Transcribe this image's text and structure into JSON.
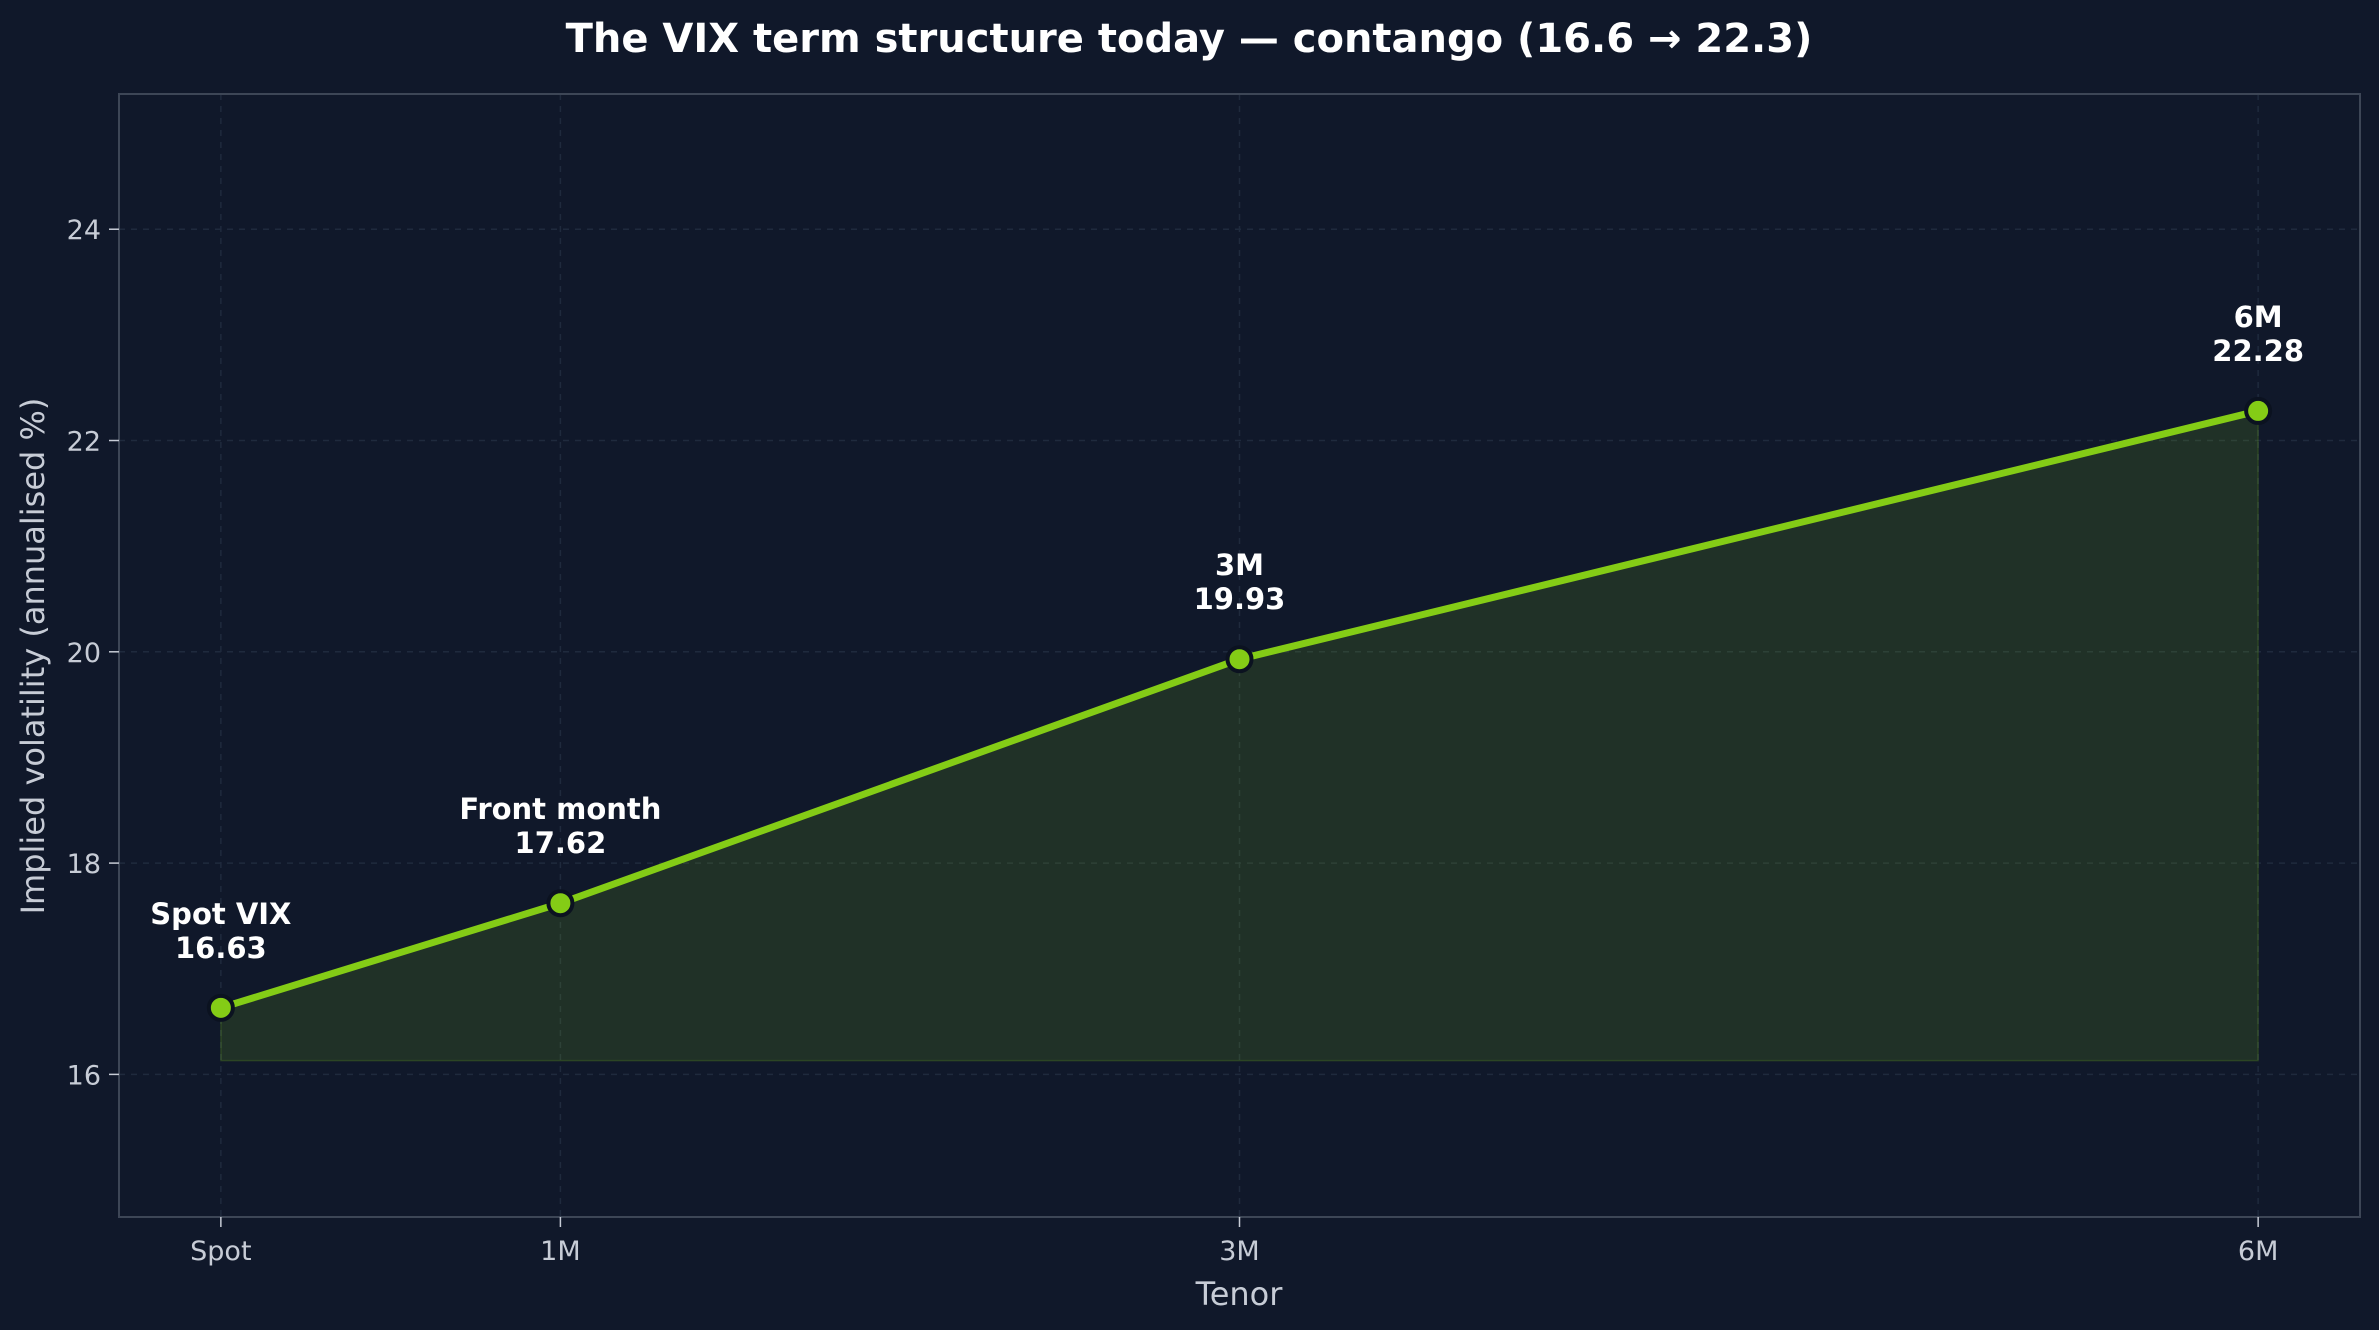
{
  "chart_data": {
    "type": "line",
    "title": "The VIX term structure today — contango (16.6 → 22.3)",
    "xlabel": "Tenor",
    "ylabel": "Implied volatility (annualised %)",
    "x_tick_labels": [
      "Spot",
      "1M",
      "3M",
      "6M"
    ],
    "x_months": [
      0,
      1,
      3,
      6
    ],
    "xlim": [
      -0.3,
      6.3
    ],
    "ylim": [
      14.65,
      25.28
    ],
    "y_ticks": [
      16,
      18,
      20,
      22,
      24
    ],
    "fill_baseline": 16.13,
    "grid": true,
    "series": [
      {
        "values": [
          16.63,
          17.62,
          19.93,
          22.28
        ]
      }
    ],
    "point_labels": [
      {
        "name": "Spot VIX",
        "value": "16.63"
      },
      {
        "name": "Front month",
        "value": "17.62"
      },
      {
        "name": "3M",
        "value": "19.93"
      },
      {
        "name": "6M",
        "value": "22.28"
      }
    ],
    "colors": {
      "background": "#10182a",
      "plot_border": "#3d4656",
      "grid": "#1f2a3d",
      "line": "#84cc16",
      "fill": "#84cc16",
      "marker_edge": "#0b1220",
      "text": "#ffffff",
      "muted_text": "#c7ccd6"
    }
  }
}
